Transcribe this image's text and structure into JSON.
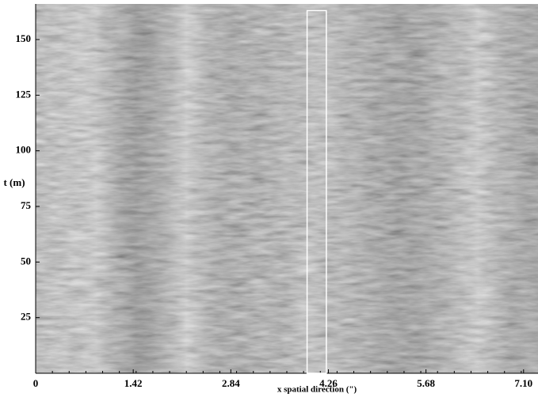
{
  "chart_data": {
    "type": "image",
    "x_label": "x spatial direction (\")",
    "y_label": "t (m)",
    "xlim": [
      0,
      7.31
    ],
    "ylim": [
      0,
      166
    ],
    "xticks": [
      0,
      1.42,
      2.84,
      4.26,
      5.68,
      {
        "value": 7.1,
        "label": "7.10"
      }
    ],
    "yticks": [
      25,
      50,
      75,
      100,
      125,
      150
    ],
    "highlight": {
      "x": [
        3.95,
        4.23
      ],
      "y": [
        0,
        163
      ],
      "color": "#ffffff"
    }
  }
}
